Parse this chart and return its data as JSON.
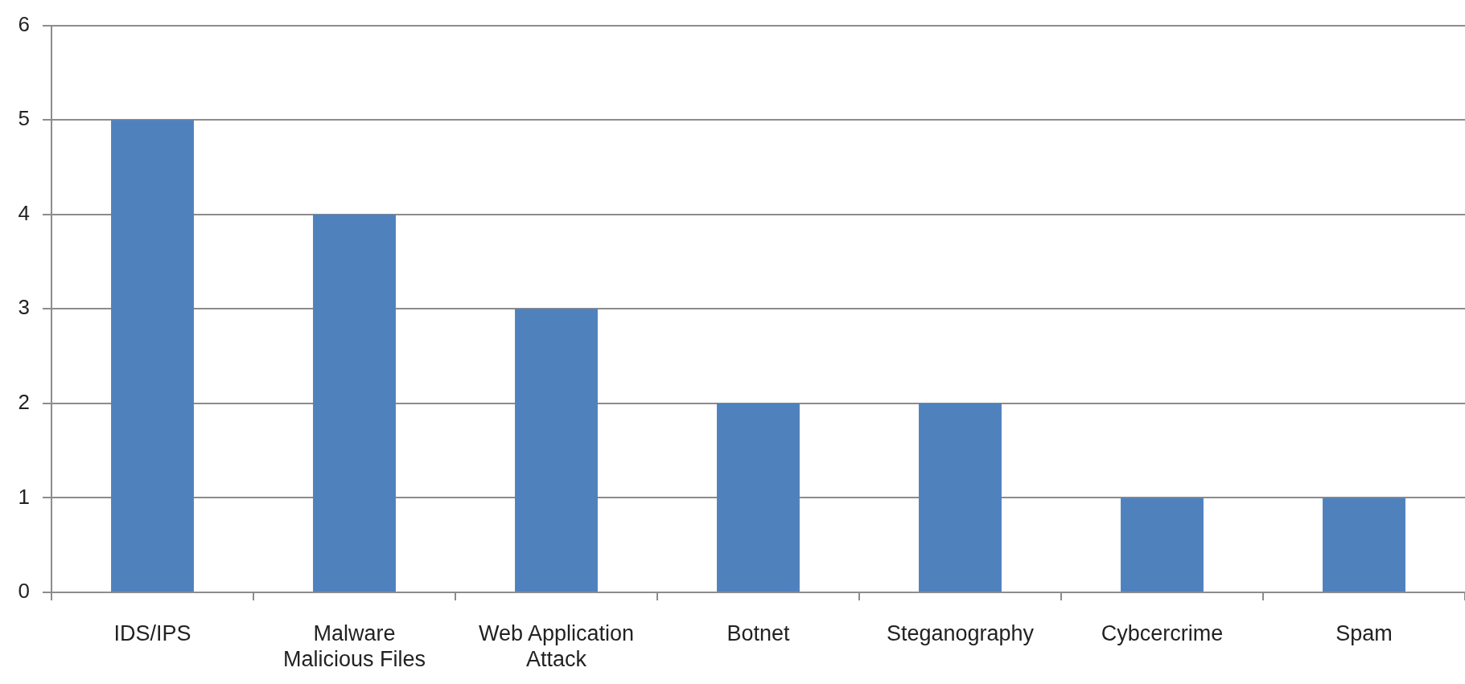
{
  "chart_data": {
    "type": "bar",
    "categories": [
      "IDS/IPS",
      "Malware\nMalicious Files",
      "Web Application\nAttack",
      "Botnet",
      "Steganography",
      "Cybcercrime",
      "Spam"
    ],
    "values": [
      5,
      4,
      3,
      2,
      2,
      1,
      1
    ],
    "color": "#4f81bd",
    "ylim": [
      0,
      6
    ],
    "yticks": [
      0,
      1,
      2,
      3,
      4,
      5,
      6
    ],
    "grid": "y"
  }
}
